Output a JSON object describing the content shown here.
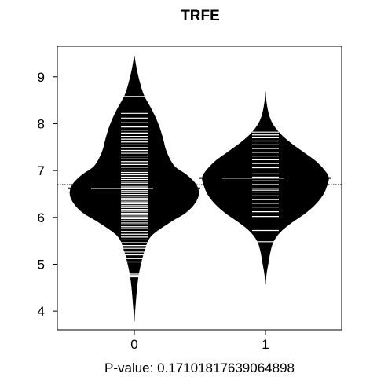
{
  "chart_data": {
    "type": "beanplot",
    "title": "TRFE",
    "xlabel": "P-value: 0.17101817639064898",
    "ylabel": "",
    "ylim": [
      3.6,
      9.65
    ],
    "yticks": [
      "4",
      "5",
      "6",
      "7",
      "8",
      "9"
    ],
    "categories": [
      "0",
      "1"
    ],
    "overall_mean": 6.7,
    "grid": false,
    "legend": "none",
    "colors": {
      "bean": "#000000",
      "lines": "#ffffff",
      "background": "#ffffff",
      "axis": "#000000"
    },
    "beans": [
      {
        "name": "0",
        "mean": 6.62,
        "density": [
          [
            3.78,
            0.0
          ],
          [
            4.0,
            0.01
          ],
          [
            4.5,
            0.04
          ],
          [
            4.8,
            0.07
          ],
          [
            5.0,
            0.1
          ],
          [
            5.3,
            0.16
          ],
          [
            5.6,
            0.26
          ],
          [
            5.9,
            0.56
          ],
          [
            6.1,
            0.8
          ],
          [
            6.3,
            0.94
          ],
          [
            6.5,
            1.0
          ],
          [
            6.7,
            0.96
          ],
          [
            6.9,
            0.82
          ],
          [
            7.1,
            0.62
          ],
          [
            7.4,
            0.5
          ],
          [
            7.7,
            0.44
          ],
          [
            8.0,
            0.37
          ],
          [
            8.3,
            0.27
          ],
          [
            8.6,
            0.15
          ],
          [
            8.9,
            0.08
          ],
          [
            9.2,
            0.03
          ],
          [
            9.45,
            0.0
          ]
        ],
        "observations": [
          4.73,
          4.76,
          4.79,
          5.05,
          5.12,
          5.2,
          5.26,
          5.34,
          5.4,
          5.46,
          5.52,
          5.58,
          5.64,
          5.7,
          5.76,
          5.8,
          5.84,
          5.88,
          5.93,
          5.97,
          6.01,
          6.05,
          6.09,
          6.13,
          6.17,
          6.21,
          6.25,
          6.29,
          6.33,
          6.37,
          6.41,
          6.45,
          6.49,
          6.53,
          6.57,
          6.61,
          6.65,
          6.69,
          6.73,
          6.77,
          6.81,
          6.86,
          6.91,
          6.96,
          7.01,
          7.07,
          7.13,
          7.19,
          7.25,
          7.31,
          7.37,
          7.43,
          7.49,
          7.55,
          7.61,
          7.67,
          7.73,
          7.8,
          7.86,
          7.93,
          8.02,
          8.12,
          8.22,
          8.58
        ]
      },
      {
        "name": "1",
        "mean": 6.84,
        "density": [
          [
            4.58,
            0.0
          ],
          [
            4.8,
            0.015
          ],
          [
            5.0,
            0.04
          ],
          [
            5.3,
            0.08
          ],
          [
            5.5,
            0.13
          ],
          [
            5.7,
            0.24
          ],
          [
            5.9,
            0.42
          ],
          [
            6.1,
            0.63
          ],
          [
            6.3,
            0.79
          ],
          [
            6.5,
            0.9
          ],
          [
            6.7,
            0.96
          ],
          [
            6.85,
            0.98
          ],
          [
            7.0,
            0.92
          ],
          [
            7.2,
            0.78
          ],
          [
            7.4,
            0.58
          ],
          [
            7.6,
            0.38
          ],
          [
            7.8,
            0.22
          ],
          [
            8.0,
            0.11
          ],
          [
            8.2,
            0.05
          ],
          [
            8.45,
            0.015
          ],
          [
            8.68,
            0.0
          ]
        ],
        "observations": [
          5.48,
          5.72,
          6.02,
          6.12,
          6.22,
          6.3,
          6.38,
          6.46,
          6.54,
          6.58,
          6.62,
          6.7,
          6.78,
          6.86,
          6.93,
          7.06,
          7.15,
          7.23,
          7.31,
          7.39,
          7.47,
          7.55,
          7.63,
          7.7,
          7.76,
          7.82
        ]
      }
    ]
  }
}
